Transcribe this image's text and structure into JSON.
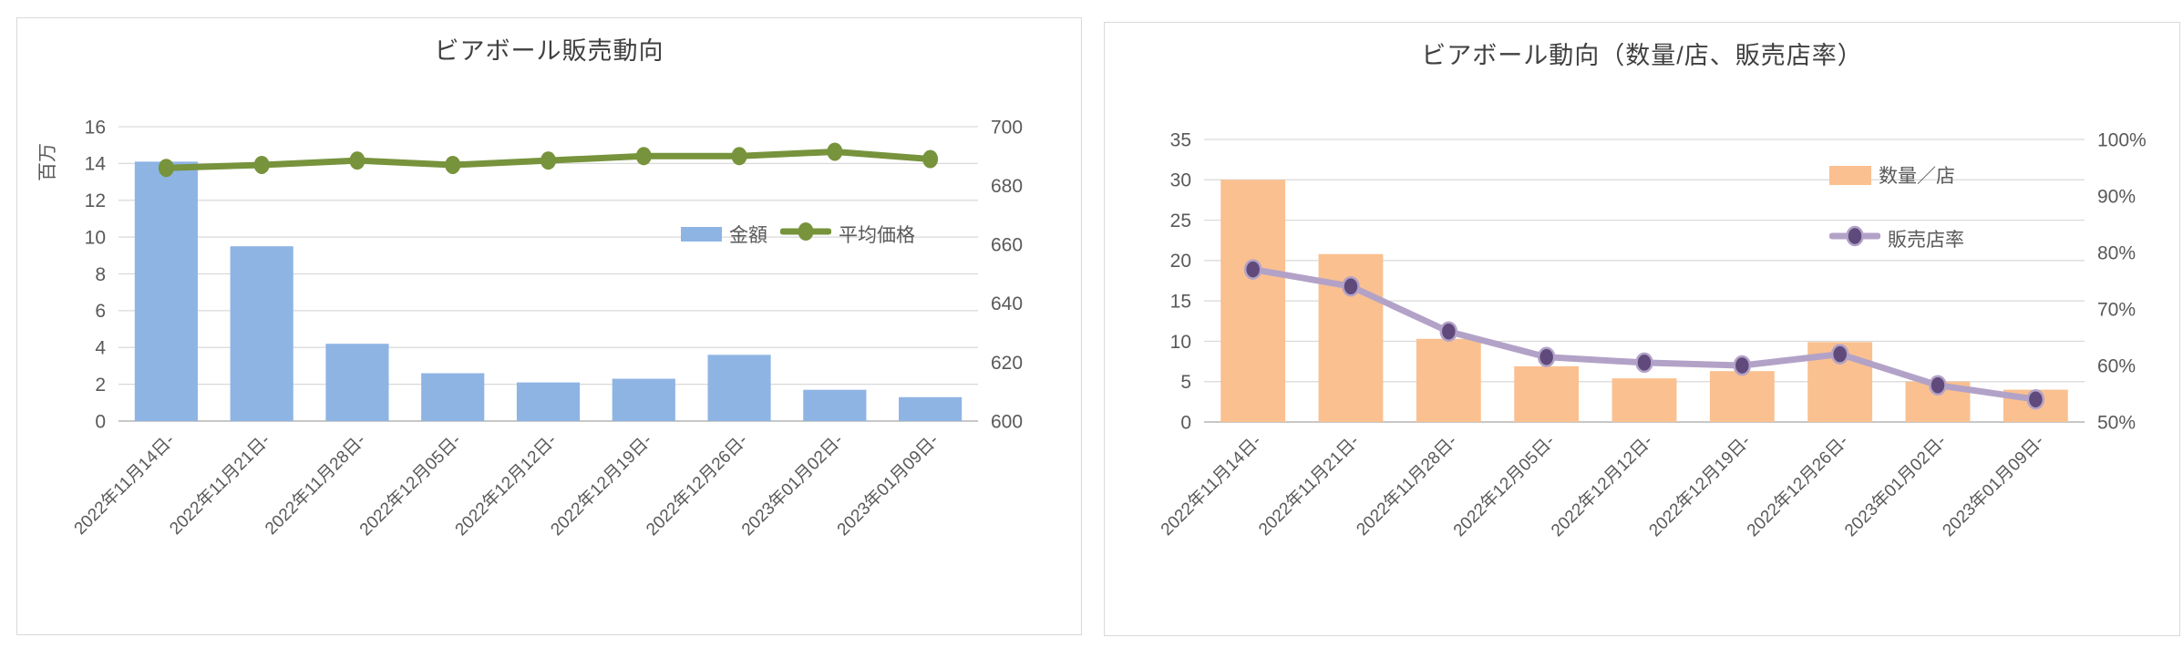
{
  "colors": {
    "grid": "#D9D9D9",
    "baseline": "#BFBFBF",
    "tick_text": "#595959",
    "title_text": "#404040",
    "panel_border": "#D9D9D9",
    "bar_blue": "#8EB4E3",
    "line_green": "#77933C",
    "bar_orange": "#FAC090",
    "line_purple": "#B3A2C7",
    "marker_purple": "#604A7B"
  },
  "chart_data": [
    {
      "type": "combo-bar-line",
      "title": "ビアボール販売動向",
      "categories": [
        "2022年11月14日-",
        "2022年11月21日-",
        "2022年11月28日-",
        "2022年12月05日-",
        "2022年12月12日-",
        "2022年12月19日-",
        "2022年12月26日-",
        "2023年01月02日-",
        "2023年01月09日-"
      ],
      "primary_axis": {
        "title": "百万",
        "min": 0,
        "max": 16,
        "step": 2,
        "suffix": ""
      },
      "secondary_axis": {
        "min": 600,
        "max": 700,
        "step": 20,
        "suffix": ""
      },
      "grid": true,
      "legend_position": "inside-right-horizontal",
      "series": [
        {
          "name": "金額",
          "type": "bar",
          "axis": "primary",
          "color": "#8EB4E3",
          "values": [
            14.1,
            9.5,
            4.2,
            2.6,
            2.1,
            2.3,
            3.6,
            1.7,
            1.3
          ]
        },
        {
          "name": "平均価格",
          "type": "line",
          "axis": "secondary",
          "color": "#77933C",
          "marker_color": "#77933C",
          "values": [
            686,
            687,
            688.5,
            687,
            688.5,
            690,
            690,
            691.5,
            689
          ]
        }
      ]
    },
    {
      "type": "combo-bar-line",
      "title": "ビアボール動向（数量/店、販売店率）",
      "categories": [
        "2022年11月14日-",
        "2022年11月21日-",
        "2022年11月28日-",
        "2022年12月05日-",
        "2022年12月12日-",
        "2022年12月19日-",
        "2022年12月26日-",
        "2023年01月02日-",
        "2023年01月09日-"
      ],
      "primary_axis": {
        "title": "",
        "min": 0,
        "max": 35,
        "step": 5,
        "suffix": ""
      },
      "secondary_axis": {
        "min": 50,
        "max": 100,
        "step": 10,
        "suffix": "%"
      },
      "grid": true,
      "legend_position": "inside-right-vertical",
      "series": [
        {
          "name": "数量／店",
          "type": "bar",
          "axis": "primary",
          "color": "#FAC090",
          "values": [
            30,
            20.8,
            10.3,
            6.9,
            5.4,
            6.3,
            9.9,
            5.0,
            4.0
          ]
        },
        {
          "name": "販売店率",
          "type": "line",
          "axis": "secondary",
          "color": "#B3A2C7",
          "marker_color": "#604A7B",
          "values": [
            77,
            74,
            66,
            61.5,
            60.5,
            60,
            62,
            56.5,
            54
          ]
        }
      ]
    }
  ]
}
